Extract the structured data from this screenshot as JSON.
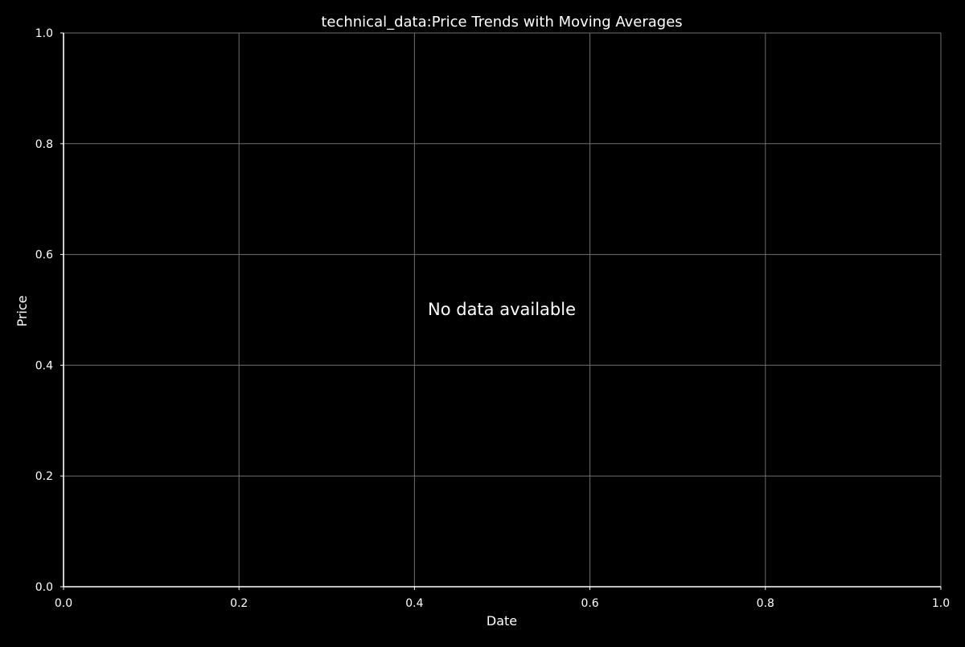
{
  "chart_data": {
    "type": "line",
    "title": "technical_data:Price Trends with Moving Averages",
    "xlabel": "Date",
    "ylabel": "Price",
    "xlim": [
      0.0,
      1.0
    ],
    "ylim": [
      0.0,
      1.0
    ],
    "x_ticks": [
      "0.0",
      "0.2",
      "0.4",
      "0.6",
      "0.8",
      "1.0"
    ],
    "y_ticks": [
      "0.0",
      "0.2",
      "0.4",
      "0.6",
      "0.8",
      "1.0"
    ],
    "grid": true,
    "series": [],
    "message": "No data available"
  },
  "colors": {
    "background": "#000000",
    "text": "#ffffff",
    "axis": "#ffffff",
    "grid": "#6e6e6e"
  }
}
